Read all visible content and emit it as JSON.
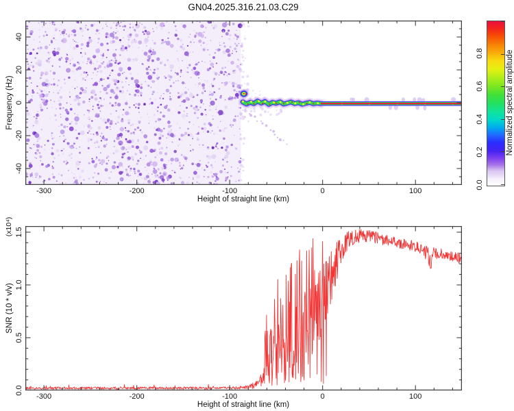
{
  "title": "GN04.2025.316.21.03.C29",
  "colors": {
    "background": "#ffffff",
    "axis": "#3f3f3f",
    "curve_red": "#f23535",
    "noise_bg": "#f4eefb",
    "noise_palette": [
      "#e3d5f4",
      "#cdb0ee",
      "#ad84e2",
      "#9055d6",
      "#6f2cc4"
    ],
    "track_fuzz": "#d2baf0",
    "track_purple": "#a974e6",
    "track_blue": "#2d2df2",
    "track_green": "#35d94f",
    "track_yellow": "#f2ee2c",
    "track_red": "#e81f38"
  },
  "colorbar": {
    "label": "Normalized spectral amplitude",
    "tick_labels": [
      "0.0",
      "0.2",
      "0.4",
      "0.6",
      "0.8"
    ],
    "tick_values": [
      0.0,
      0.2,
      0.4,
      0.6,
      0.8
    ],
    "range": [
      0.0,
      1.0
    ],
    "gradient_bottom_to_top": [
      {
        "p": 0,
        "c": "#ffffff"
      },
      {
        "p": 4,
        "c": "#f5effc"
      },
      {
        "p": 9,
        "c": "#d9c4f2"
      },
      {
        "p": 13,
        "c": "#a36ee6"
      },
      {
        "p": 17,
        "c": "#7a3df2"
      },
      {
        "p": 21,
        "c": "#4523f2"
      },
      {
        "p": 26,
        "c": "#2b2bff"
      },
      {
        "p": 31,
        "c": "#1f6dff"
      },
      {
        "p": 35,
        "c": "#00a8f0"
      },
      {
        "p": 40,
        "c": "#00d8c8"
      },
      {
        "p": 45,
        "c": "#10e49a"
      },
      {
        "p": 50,
        "c": "#22e060"
      },
      {
        "p": 55,
        "c": "#3fe03a"
      },
      {
        "p": 60,
        "c": "#78e622"
      },
      {
        "p": 66,
        "c": "#b2ee18"
      },
      {
        "p": 71,
        "c": "#e8f012"
      },
      {
        "p": 76,
        "c": "#f8d90e"
      },
      {
        "p": 81,
        "c": "#f8ab0a"
      },
      {
        "p": 86,
        "c": "#f87f06"
      },
      {
        "p": 91,
        "c": "#f84e04"
      },
      {
        "p": 96,
        "c": "#f22020"
      },
      {
        "p": 100,
        "c": "#e8103c"
      }
    ]
  },
  "chart_data": [
    {
      "type": "heatmap",
      "name": "spectrogram",
      "xlabel": "Height of straight line (km)",
      "ylabel": "Frequency (Hz)",
      "xlim": [
        -320,
        150
      ],
      "ylim": [
        -50,
        50
      ],
      "x_tick_labels": [
        "-300",
        "-200",
        "-100",
        "0",
        "100"
      ],
      "x_tick_values": [
        -300,
        -200,
        -100,
        0,
        100
      ],
      "x_minor_step": 20,
      "y_tick_labels": [
        "40",
        "20",
        "0",
        "-20",
        "-40"
      ],
      "y_tick_values": [
        40,
        20,
        0,
        -20,
        -40
      ],
      "y_minor_step": 5,
      "grid": false,
      "legend": "colorbar right",
      "noise_region": {
        "x_range": [
          -320,
          -88
        ],
        "freq_range": [
          -50,
          50
        ],
        "description": "broadband speckle noise, normalized amplitude 0-0.35",
        "blob_count": 1500,
        "seed": 1234
      },
      "signal_track": {
        "onset_blob": {
          "h": -87,
          "f": 5.5,
          "amplitude": 1.0
        },
        "wiggle_points": [
          [
            -86,
            0.5
          ],
          [
            -82,
            -0.8
          ],
          [
            -78,
            0.3
          ],
          [
            -74,
            -0.5
          ],
          [
            -70,
            1.0
          ],
          [
            -66,
            -0.2
          ],
          [
            -62,
            0.8
          ],
          [
            -58,
            -1.0
          ],
          [
            -54,
            0.2
          ],
          [
            -50,
            -0.3
          ],
          [
            -46,
            0.6
          ],
          [
            -42,
            -0.8
          ],
          [
            -38,
            -0.2
          ],
          [
            -34,
            0.5
          ],
          [
            -30,
            -0.5
          ],
          [
            -26,
            0.1
          ],
          [
            -22,
            -0.9
          ],
          [
            -18,
            -0.3
          ],
          [
            -14,
            0.2
          ],
          [
            -10,
            -0.6
          ],
          [
            -6,
            -0.2
          ],
          [
            -2,
            -0.5
          ]
        ],
        "straight_segment": {
          "h_range": [
            -2,
            150
          ],
          "f": -0.5,
          "amplitude": 1.0
        },
        "ghost_trail": {
          "from": [
            -79,
            -6
          ],
          "to": [
            -38,
            -25
          ],
          "dots": 14
        }
      }
    },
    {
      "type": "line",
      "name": "snr",
      "xlabel": "Height of straight line (km)",
      "ylabel": "SNR (10 * v/v)",
      "y_scale_note": "(x10⁴)",
      "xlim": [
        -320,
        150
      ],
      "ylim": [
        0,
        1.558
      ],
      "x_tick_labels": [
        "-300",
        "-200",
        "-100",
        "0",
        "100"
      ],
      "x_tick_values": [
        -300,
        -200,
        -100,
        0,
        100
      ],
      "x_minor_step": 20,
      "y_tick_labels": [
        "0.0",
        "0.5",
        "1.0",
        "1.5"
      ],
      "y_tick_values": [
        0.0,
        0.5,
        1.0,
        1.5
      ],
      "y_minor_step": 0.1,
      "grid": false,
      "series": [
        {
          "name": "SNR",
          "color": "#f23535",
          "sample_step_km": 0.45,
          "seed": 77,
          "envelope_h_base_jitter": [
            [
              -320,
              0.022,
              0.012
            ],
            [
              -100,
              0.022,
              0.012
            ],
            [
              -80,
              0.03,
              0.02
            ],
            [
              -72,
              0.05,
              0.04
            ],
            [
              -66,
              0.1,
              0.07
            ],
            [
              -62,
              0.22,
              0.18
            ],
            [
              -58,
              0.38,
              0.32
            ],
            [
              -54,
              0.3,
              0.26
            ],
            [
              -50,
              0.45,
              0.38
            ],
            [
              -46,
              0.35,
              0.3
            ],
            [
              -42,
              0.5,
              0.42
            ],
            [
              -38,
              0.42,
              0.36
            ],
            [
              -34,
              0.5,
              0.4
            ],
            [
              -30,
              0.48,
              0.42
            ],
            [
              -26,
              0.55,
              0.45
            ],
            [
              -22,
              0.5,
              0.4
            ],
            [
              -18,
              0.62,
              0.42
            ],
            [
              -14,
              0.6,
              0.38
            ],
            [
              -10,
              0.72,
              0.4
            ],
            [
              -6,
              0.8,
              0.38
            ],
            [
              -2,
              0.85,
              0.35
            ],
            [
              2,
              0.9,
              0.3
            ],
            [
              6,
              1.0,
              0.28
            ],
            [
              10,
              1.08,
              0.25
            ],
            [
              14,
              1.18,
              0.22
            ],
            [
              18,
              1.27,
              0.18
            ],
            [
              22,
              1.34,
              0.13
            ],
            [
              26,
              1.4,
              0.1
            ],
            [
              30,
              1.44,
              0.08
            ],
            [
              36,
              1.46,
              0.07
            ],
            [
              44,
              1.47,
              0.06
            ],
            [
              52,
              1.46,
              0.06
            ],
            [
              60,
              1.44,
              0.055
            ],
            [
              70,
              1.42,
              0.05
            ],
            [
              80,
              1.4,
              0.05
            ],
            [
              90,
              1.385,
              0.05
            ],
            [
              100,
              1.365,
              0.05
            ],
            [
              108,
              1.34,
              0.05
            ],
            [
              114,
              1.28,
              0.09
            ],
            [
              116,
              1.16,
              0.12
            ],
            [
              118,
              1.3,
              0.06
            ],
            [
              126,
              1.3,
              0.05
            ],
            [
              134,
              1.28,
              0.05
            ],
            [
              142,
              1.26,
              0.05
            ],
            [
              150,
              1.25,
              0.05
            ]
          ]
        }
      ]
    }
  ],
  "layout_notes": {
    "panels": "spectrogram top, SNR bottom, shared x axis range"
  }
}
